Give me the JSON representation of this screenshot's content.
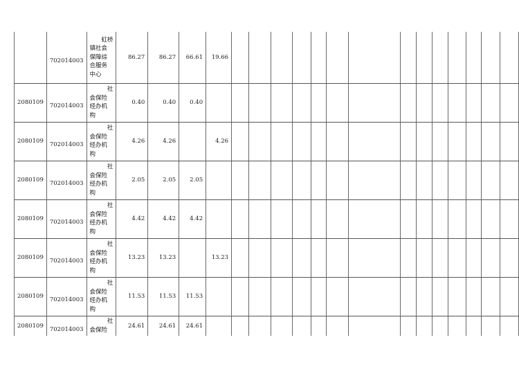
{
  "rows": [
    {
      "func_code": "",
      "org_code": "702014003",
      "name_lines": [
        "虹桥",
        "镇社会",
        "保障综",
        "合服务",
        "中心"
      ],
      "values": [
        "86.27",
        "86.27",
        "66.61",
        "19.66"
      ]
    },
    {
      "func_code": "2080109",
      "org_code": "702014003",
      "name_lines": [
        "社",
        "会保险",
        "经办机",
        "构"
      ],
      "values": [
        "0.40",
        "0.40",
        "0.40",
        ""
      ]
    },
    {
      "func_code": "2080109",
      "org_code": "702014003",
      "name_lines": [
        "社",
        "会保险",
        "经办机",
        "构"
      ],
      "values": [
        "4.26",
        "4.26",
        "",
        "4.26"
      ]
    },
    {
      "func_code": "2080109",
      "org_code": "702014003",
      "name_lines": [
        "社",
        "会保险",
        "经办机",
        "构"
      ],
      "values": [
        "2.05",
        "2.05",
        "2.05",
        ""
      ]
    },
    {
      "func_code": "2080109",
      "org_code": "702014003",
      "name_lines": [
        "社",
        "会保险",
        "经办机",
        "构"
      ],
      "values": [
        "4.42",
        "4.42",
        "4.42",
        ""
      ]
    },
    {
      "func_code": "2080109",
      "org_code": "702014003",
      "name_lines": [
        "社",
        "会保险",
        "经办机",
        "构"
      ],
      "values": [
        "13.23",
        "13.23",
        "",
        "13.23"
      ]
    },
    {
      "func_code": "2080109",
      "org_code": "702014003",
      "name_lines": [
        "社",
        "会保险",
        "经办机",
        "构"
      ],
      "values": [
        "11.53",
        "11.53",
        "11.53",
        ""
      ]
    },
    {
      "func_code": "2080109",
      "org_code": "702014003",
      "name_lines": [
        "社",
        "会保险"
      ],
      "values": [
        "24.61",
        "24.61",
        "24.61",
        ""
      ]
    }
  ]
}
